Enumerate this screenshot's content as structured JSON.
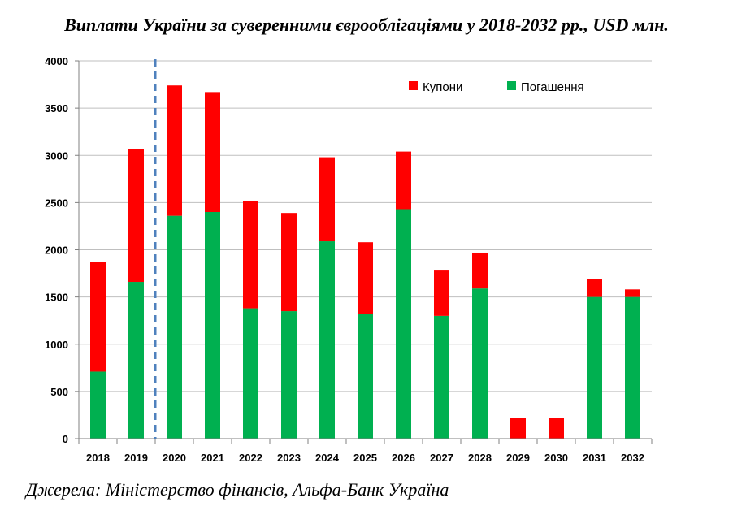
{
  "title": "Виплати України за суверенними єврооблігаціями у 2018-2032 рр., USD млн.",
  "source": "Джерела: Міністерство фінансів, Альфа-Банк Україна",
  "colors": {
    "coupons": "#ff0000",
    "repayment": "#00b050",
    "grid": "#bfbfbf",
    "divider": "#4f81bd"
  },
  "chart_data": {
    "type": "bar",
    "stacked": true,
    "categories": [
      "2018",
      "2019",
      "2020",
      "2021",
      "2022",
      "2023",
      "2024",
      "2025",
      "2026",
      "2027",
      "2028",
      "2029",
      "2030",
      "2031",
      "2032"
    ],
    "series": [
      {
        "name": "Погашення",
        "color": "#00b050",
        "values": [
          710,
          1660,
          2360,
          2400,
          1380,
          1350,
          2090,
          1320,
          2430,
          1300,
          1590,
          0,
          0,
          1500,
          1500
        ]
      },
      {
        "name": "Купони",
        "color": "#ff0000",
        "values": [
          1160,
          1410,
          1380,
          1270,
          1140,
          1040,
          890,
          760,
          610,
          480,
          380,
          220,
          220,
          190,
          80
        ]
      }
    ],
    "legend": [
      {
        "name": "Купони",
        "color": "#ff0000"
      },
      {
        "name": "Погашення",
        "color": "#00b050"
      }
    ],
    "legend_position": "top-right",
    "ylim": [
      0,
      4000
    ],
    "yticks": [
      0,
      500,
      1000,
      1500,
      2000,
      2500,
      3000,
      3500,
      4000
    ],
    "ytick_labels": [
      "0",
      "500",
      "1000",
      "1500",
      "2000",
      "2500",
      "3000",
      "3500",
      "4000"
    ],
    "grid": true,
    "divider_after_category": "2019",
    "xlabel": "",
    "ylabel": ""
  }
}
